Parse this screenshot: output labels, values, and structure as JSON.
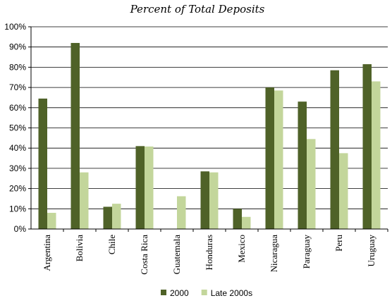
{
  "chart_data": {
    "type": "bar",
    "title": "Percent of  Total Deposits",
    "xlabel": "",
    "ylabel": "",
    "ylim": [
      0,
      100
    ],
    "y_tick_labels": [
      "0%",
      "10%",
      "20%",
      "30%",
      "40%",
      "50%",
      "60%",
      "70%",
      "80%",
      "90%",
      "100%"
    ],
    "grid": true,
    "legend_position": "bottom",
    "categories": [
      "Argentina",
      "Bolivia",
      "Chile",
      "Costa Rica",
      "Guatemala",
      "Honduras",
      "Mexico",
      "Nicaragua",
      "Paraguay",
      "Peru",
      "Uruguay"
    ],
    "series": [
      {
        "name": "2000",
        "color": "#4f6228",
        "values": [
          64.5,
          92.0,
          11.0,
          41.0,
          null,
          28.5,
          10.0,
          70.0,
          63.0,
          78.5,
          81.5
        ]
      },
      {
        "name": "Late 2000s",
        "color": "#c3d69b",
        "values": [
          8.0,
          28.0,
          12.5,
          40.8,
          16.2,
          28.0,
          6.0,
          68.5,
          44.5,
          37.5,
          73.0
        ]
      }
    ]
  }
}
